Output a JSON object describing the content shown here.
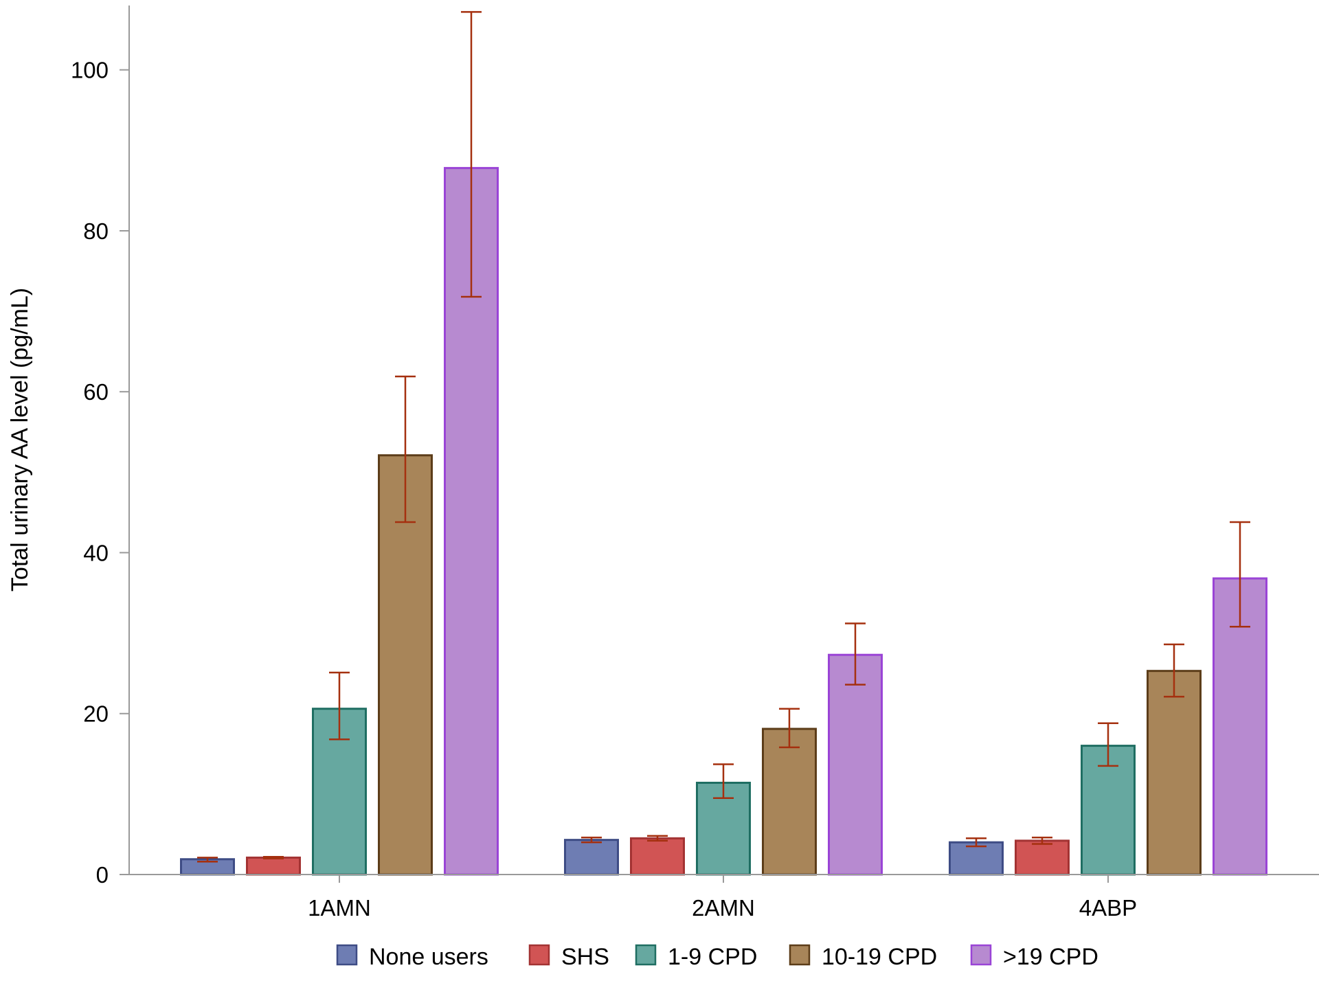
{
  "chart_data": {
    "type": "bar",
    "title": "",
    "ylabel": "Total urinary AA level (pg/mL)",
    "xlabel": "",
    "categories": [
      "1AMN",
      "2AMN",
      "4ABP"
    ],
    "ylim": [
      0,
      108
    ],
    "yticks": [
      0,
      20,
      40,
      60,
      80,
      100
    ],
    "grid": false,
    "legend_position": "bottom",
    "error_bar_color": "#A5300F",
    "series": [
      {
        "name": "None users",
        "fill": "#6E7DB3",
        "stroke": "#3E4C85",
        "values": [
          1.9,
          4.3,
          4.0
        ],
        "err_low": [
          1.6,
          4.0,
          3.5
        ],
        "err_high": [
          2.1,
          4.6,
          4.5
        ]
      },
      {
        "name": "SHS",
        "fill": "#D15454",
        "stroke": "#A33333",
        "values": [
          2.1,
          4.5,
          4.2
        ],
        "err_low": [
          2.0,
          4.2,
          3.8
        ],
        "err_high": [
          2.2,
          4.8,
          4.6
        ]
      },
      {
        "name": "1-9 CPD",
        "fill": "#66A8A0",
        "stroke": "#1F6E62",
        "values": [
          20.6,
          11.4,
          16.0
        ],
        "err_low": [
          16.8,
          9.5,
          13.5
        ],
        "err_high": [
          25.1,
          13.7,
          18.8
        ]
      },
      {
        "name": "10-19 CPD",
        "fill": "#A88559",
        "stroke": "#5C3D19",
        "values": [
          52.1,
          18.1,
          25.3
        ],
        "err_low": [
          43.8,
          15.8,
          22.1
        ],
        "err_high": [
          61.9,
          20.6,
          28.6
        ]
      },
      {
        "name": ">19 CPD",
        "fill": "#B78AD0",
        "stroke": "#9A44D6",
        "values": [
          87.8,
          27.3,
          36.8
        ],
        "err_low": [
          71.8,
          23.6,
          30.8
        ],
        "err_high": [
          107.2,
          31.2,
          43.8
        ]
      }
    ]
  }
}
